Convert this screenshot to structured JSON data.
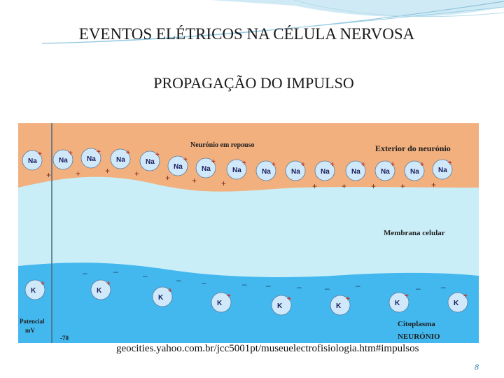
{
  "slide": {
    "title": "EVENTOS ELÉTRICOS NA CÉLULA NERVOSA",
    "subtitle": "PROPAGAÇÃO DO IMPULSO",
    "caption": "geocities.yahoo.com.br/jcc5001pt/museuelectrofisiologia.htm#impulsos",
    "page_number": "8"
  },
  "figure": {
    "labels": {
      "resting_neuron": "Neurónio em repouso",
      "exterior": "Exterior do neurónio",
      "membrane": "Membrana celular",
      "cytoplasm": "Citoplasma",
      "neuron": "NEURÓNIO",
      "potential": "Potencial",
      "unit": "mV",
      "value": "-70"
    },
    "na_label": "Na",
    "k_label": "K",
    "plus": "+",
    "minus": "–",
    "colors": {
      "exterior": "#f3b07f",
      "membrane": "#c9eef8",
      "cytoplasm": "#43b8ef",
      "ion": "#cfe9fb"
    }
  }
}
